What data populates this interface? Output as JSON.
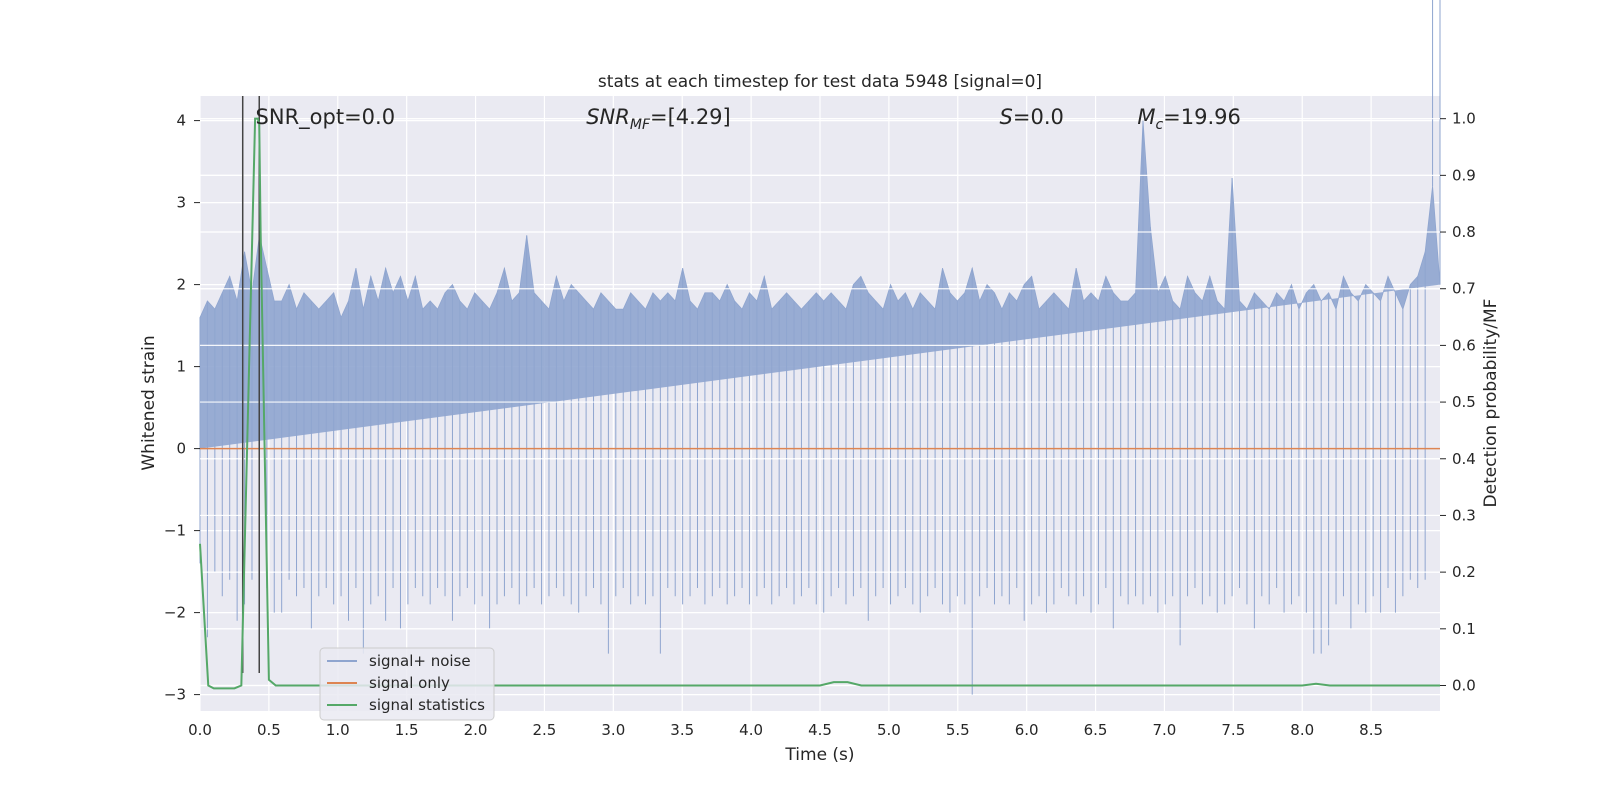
{
  "chart_data": {
    "type": "line",
    "title": "stats at each timestep for test data 5948 [signal=0]",
    "xlabel": "Time (s)",
    "ylabel": "Whitened strain",
    "y2label": "Detection probability/MF",
    "xlim": [
      0.0,
      9.0
    ],
    "ylim": [
      -3.2,
      4.3
    ],
    "y2lim": [
      -0.045,
      1.04
    ],
    "x_ticks": [
      0.0,
      0.5,
      1.0,
      1.5,
      2.0,
      2.5,
      3.0,
      3.5,
      4.0,
      4.5,
      5.0,
      5.5,
      6.0,
      6.5,
      7.0,
      7.5,
      8.0,
      8.5
    ],
    "x_tick_labels": [
      "0.0",
      "0.5",
      "1.0",
      "1.5",
      "2.0",
      "2.5",
      "3.0",
      "3.5",
      "4.0",
      "4.5",
      "5.0",
      "5.5",
      "6.0",
      "6.5",
      "7.0",
      "7.5",
      "8.0",
      "8.5"
    ],
    "y_ticks": [
      -3,
      -2,
      -1,
      0,
      1,
      2,
      3,
      4
    ],
    "y_tick_labels": [
      "−3",
      "−2",
      "−1",
      "0",
      "1",
      "2",
      "3",
      "4"
    ],
    "y2_ticks": [
      0.0,
      0.1,
      0.2,
      0.3,
      0.4,
      0.5,
      0.6,
      0.7,
      0.8,
      0.9,
      1.0
    ],
    "y2_tick_labels": [
      "0.0",
      "0.1",
      "0.2",
      "0.3",
      "0.4",
      "0.5",
      "0.6",
      "0.7",
      "0.8",
      "0.9",
      "1.0"
    ],
    "grid": true,
    "legend_position": "lower-left",
    "annotations": [
      {
        "text": "SNR_opt=0.0",
        "x": 0.2
      },
      {
        "text": "SNR",
        "sub": "MF",
        "rest": "=[4.29]",
        "x": 2.6,
        "italic": true
      },
      {
        "text": "S",
        "rest": "=0.0",
        "x": 5.6,
        "italic": true
      },
      {
        "text": "M",
        "sub": "c",
        "rest": "=19.96",
        "x": 6.6,
        "italic": true
      }
    ],
    "series": [
      {
        "name": "signal+ noise",
        "color": "#8fa5cf",
        "axis": "left",
        "envelope_upper": [
          1.6,
          1.8,
          1.7,
          1.9,
          2.1,
          1.8,
          2.4,
          1.9,
          2.6,
          2.2,
          1.8,
          1.8,
          2.0,
          1.7,
          1.9,
          1.8,
          1.7,
          1.8,
          1.9,
          1.6,
          1.8,
          2.2,
          1.7,
          2.1,
          1.8,
          2.2,
          1.9,
          2.1,
          1.8,
          2.1,
          1.7,
          1.8,
          1.7,
          1.9,
          2.0,
          1.8,
          1.7,
          1.9,
          1.8,
          1.7,
          1.9,
          2.2,
          1.8,
          1.9,
          2.6,
          1.9,
          1.8,
          1.7,
          2.1,
          1.8,
          2.0,
          1.9,
          1.8,
          1.7,
          1.9,
          1.8,
          1.7,
          1.7,
          1.9,
          1.8,
          1.7,
          1.9,
          1.8,
          1.9,
          1.8,
          2.2,
          1.8,
          1.7,
          1.9,
          1.9,
          1.8,
          2.0,
          1.8,
          1.7,
          1.9,
          1.8,
          2.1,
          1.7,
          1.8,
          1.9,
          1.8,
          1.7,
          1.8,
          1.9,
          1.8,
          1.9,
          1.8,
          1.7,
          2.0,
          2.1,
          1.9,
          1.8,
          1.7,
          2.0,
          1.8,
          1.9,
          1.7,
          1.9,
          1.8,
          1.7,
          2.2,
          1.9,
          1.8,
          1.9,
          2.2,
          1.8,
          2.0,
          1.9,
          1.7,
          1.9,
          1.8,
          2.0,
          2.1,
          1.7,
          1.8,
          1.9,
          1.8,
          1.7,
          2.2,
          1.8,
          1.9,
          1.8,
          2.1,
          1.9,
          1.8,
          1.8,
          1.9,
          4.0,
          2.7,
          1.9,
          2.1,
          1.8,
          1.7,
          2.1,
          1.9,
          1.8,
          2.1,
          1.8,
          1.7,
          3.3,
          1.8,
          1.7,
          1.9,
          1.8,
          1.7,
          1.9,
          1.8,
          2.0,
          1.7,
          1.9,
          2.0,
          1.8,
          1.9,
          1.7,
          2.1,
          1.9,
          1.8,
          2.0,
          1.9,
          1.8,
          2.1,
          1.9,
          1.7,
          2.0,
          2.1,
          2.4,
          3.2,
          2.0
        ],
        "envelope_lower": [
          -1.4,
          -2.3,
          -1.5,
          -1.8,
          -1.6,
          -2.1,
          -1.9,
          -1.6,
          -1.8,
          -1.7,
          -2.0,
          -2.0,
          -1.6,
          -1.8,
          -1.7,
          -2.2,
          -1.8,
          -1.7,
          -1.9,
          -1.8,
          -2.1,
          -1.7,
          -2.5,
          -1.9,
          -1.8,
          -2.1,
          -1.7,
          -2.2,
          -1.9,
          -1.7,
          -1.8,
          -1.9,
          -1.7,
          -1.8,
          -2.1,
          -1.8,
          -1.7,
          -1.9,
          -1.8,
          -2.2,
          -1.9,
          -1.8,
          -1.7,
          -1.9,
          -1.8,
          -1.7,
          -1.9,
          -1.8,
          -1.7,
          -1.8,
          -1.9,
          -2.0,
          -1.8,
          -1.7,
          -1.9,
          -2.5,
          -1.8,
          -1.7,
          -1.9,
          -1.8,
          -1.9,
          -1.8,
          -2.5,
          -1.7,
          -1.8,
          -1.9,
          -1.8,
          -1.7,
          -1.9,
          -1.8,
          -1.7,
          -1.9,
          -1.8,
          -1.7,
          -1.9,
          -1.8,
          -1.7,
          -1.9,
          -1.8,
          -1.7,
          -1.9,
          -1.8,
          -1.7,
          -1.9,
          -2.0,
          -1.8,
          -1.7,
          -1.9,
          -1.8,
          -1.7,
          -2.1,
          -1.8,
          -1.7,
          -1.9,
          -1.8,
          -1.7,
          -1.9,
          -2.0,
          -1.8,
          -1.7,
          -1.9,
          -2.0,
          -1.8,
          -1.9,
          -3.0,
          -1.8,
          -1.7,
          -1.9,
          -1.8,
          -1.9,
          -1.7,
          -2.1,
          -1.9,
          -1.8,
          -2.0,
          -1.9,
          -1.7,
          -1.8,
          -1.9,
          -1.8,
          -2.0,
          -1.9,
          -1.7,
          -2.2,
          -1.8,
          -1.9,
          -1.8,
          -1.9,
          -1.8,
          -2.0,
          -1.9,
          -1.8,
          -2.4,
          -1.8,
          -1.7,
          -1.9,
          -1.8,
          -2.0,
          -1.9,
          -1.8,
          -1.7,
          -1.9,
          -2.2,
          -1.8,
          -1.9,
          -1.7,
          -2.0,
          -1.9,
          -1.8,
          -2.0,
          -2.5,
          -2.5,
          -2.4,
          -1.9,
          -1.8,
          -2.2,
          -1.9,
          -2.0,
          -1.8,
          -2.0,
          -1.7,
          -2.0,
          -1.8,
          -1.6,
          -1.7,
          -1.6
        ],
        "envelope_x_range": [
          0.0,
          9.0
        ]
      },
      {
        "name": "signal only",
        "color": "#dd8452",
        "axis": "left",
        "x": [
          0.0,
          9.0
        ],
        "y": [
          0.0,
          0.0
        ]
      },
      {
        "name": "signal statistics",
        "color": "#55a868",
        "axis": "right",
        "x": [
          0.0,
          0.06,
          0.1,
          0.2,
          0.25,
          0.3,
          0.3,
          0.4,
          0.42,
          0.43,
          0.44,
          0.5,
          0.55,
          1.0,
          2.0,
          3.0,
          4.0,
          4.5,
          4.6,
          4.7,
          4.8,
          5.0,
          6.0,
          7.0,
          8.0,
          8.1,
          8.2,
          8.5,
          9.0
        ],
        "y": [
          0.25,
          0.0,
          -0.005,
          -0.005,
          -0.005,
          0.0,
          0.0,
          1.0,
          1.0,
          0.99,
          0.8,
          0.01,
          0.0,
          0.0,
          0.0,
          0.0,
          0.0,
          0.0,
          0.006,
          0.006,
          0.0,
          0.0,
          0.0,
          0.0,
          0.0,
          0.003,
          0.0,
          0.0,
          0.0
        ]
      }
    ],
    "vertical_lines": [
      {
        "x": 0.31,
        "color": "#444444"
      },
      {
        "x": 0.43,
        "color": "#444444"
      }
    ]
  }
}
